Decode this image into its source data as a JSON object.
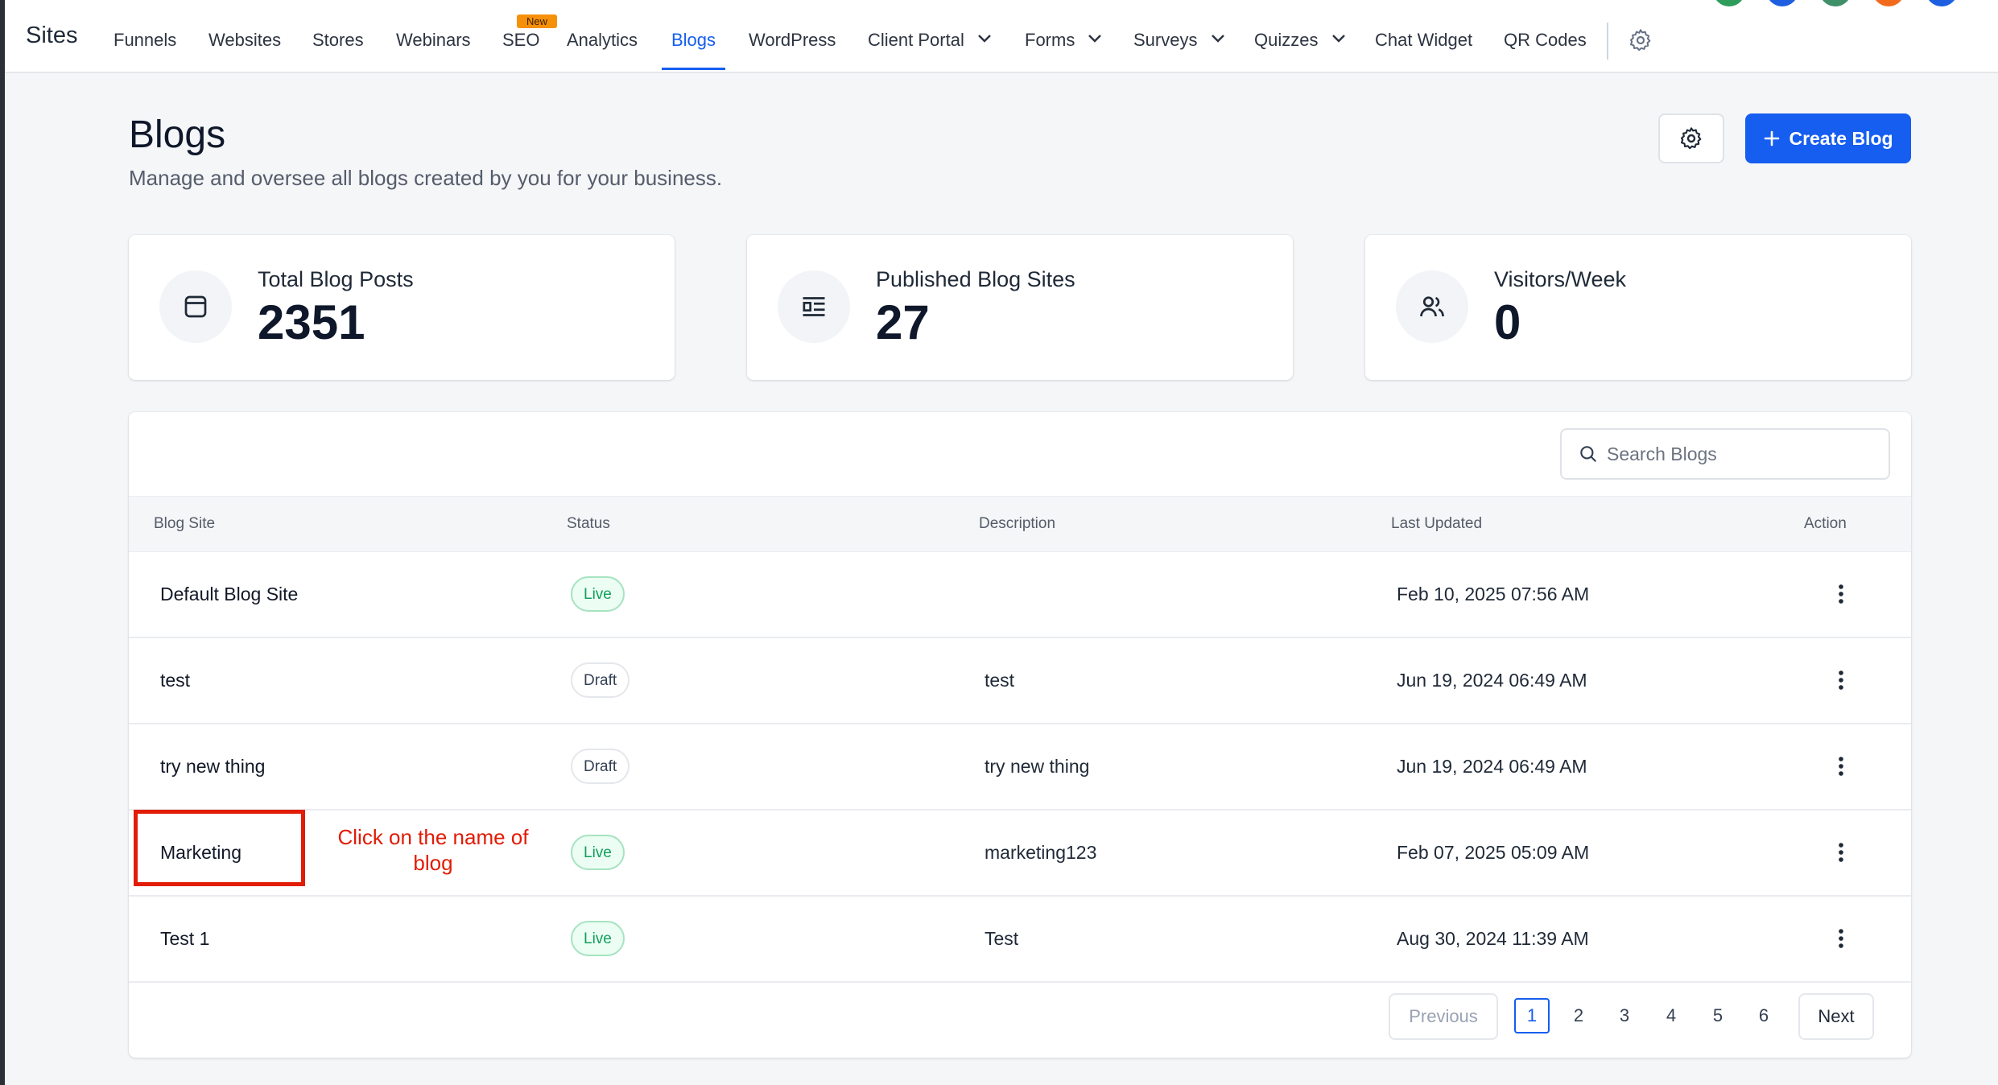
{
  "nav": {
    "brand": "Sites",
    "items": [
      {
        "label": "Funnels"
      },
      {
        "label": "Websites"
      },
      {
        "label": "Stores"
      },
      {
        "label": "Webinars"
      },
      {
        "label": "SEO",
        "badge": "New"
      },
      {
        "label": "Analytics"
      },
      {
        "label": "Blogs",
        "active": true
      },
      {
        "label": "WordPress"
      },
      {
        "label": "Client Portal",
        "dropdown": true
      },
      {
        "label": "Forms",
        "dropdown": true
      },
      {
        "label": "Surveys",
        "dropdown": true
      },
      {
        "label": "Quizzes",
        "dropdown": true
      },
      {
        "label": "Chat Widget"
      },
      {
        "label": "QR Codes"
      }
    ],
    "settings_icon": "gear-icon"
  },
  "header": {
    "title": "Blogs",
    "subtitle": "Manage and oversee all blogs created by you for your business.",
    "settings_icon": "gear-icon",
    "create_label": "Create Blog",
    "create_icon": "plus-icon"
  },
  "stats": [
    {
      "label": "Total Blog Posts",
      "value": "2351",
      "icon": "browser-window-icon"
    },
    {
      "label": "Published Blog Sites",
      "value": "27",
      "icon": "article-layout-icon"
    },
    {
      "label": "Visitors/Week",
      "value": "0",
      "icon": "users-icon"
    }
  ],
  "search": {
    "placeholder": "Search Blogs",
    "icon": "search-icon"
  },
  "table": {
    "columns": [
      "Blog Site",
      "Status",
      "Description",
      "Last Updated",
      "Action"
    ],
    "rows": [
      {
        "name": "Default Blog Site",
        "status": "Live",
        "description": "",
        "updated": "Feb 10, 2025 07:56 AM"
      },
      {
        "name": "test",
        "status": "Draft",
        "description": "test",
        "updated": "Jun 19, 2024 06:49 AM"
      },
      {
        "name": "try new thing",
        "status": "Draft",
        "description": "try new thing",
        "updated": "Jun 19, 2024 06:49 AM"
      },
      {
        "name": "Marketing",
        "status": "Live",
        "description": "marketing123",
        "updated": "Feb 07, 2025 05:09 AM"
      },
      {
        "name": "Test 1",
        "status": "Live",
        "description": "Test",
        "updated": "Aug 30, 2024 11:39 AM"
      }
    ]
  },
  "annotation": {
    "text": "Click on the name of blog",
    "color": "#e21b05"
  },
  "pagination": {
    "previous": "Previous",
    "next": "Next",
    "pages": [
      "1",
      "2",
      "3",
      "4",
      "5",
      "6"
    ],
    "current": "1"
  },
  "colors": {
    "accent": "#155eef",
    "live": "#12a05c",
    "annotation": "#e21b05"
  }
}
